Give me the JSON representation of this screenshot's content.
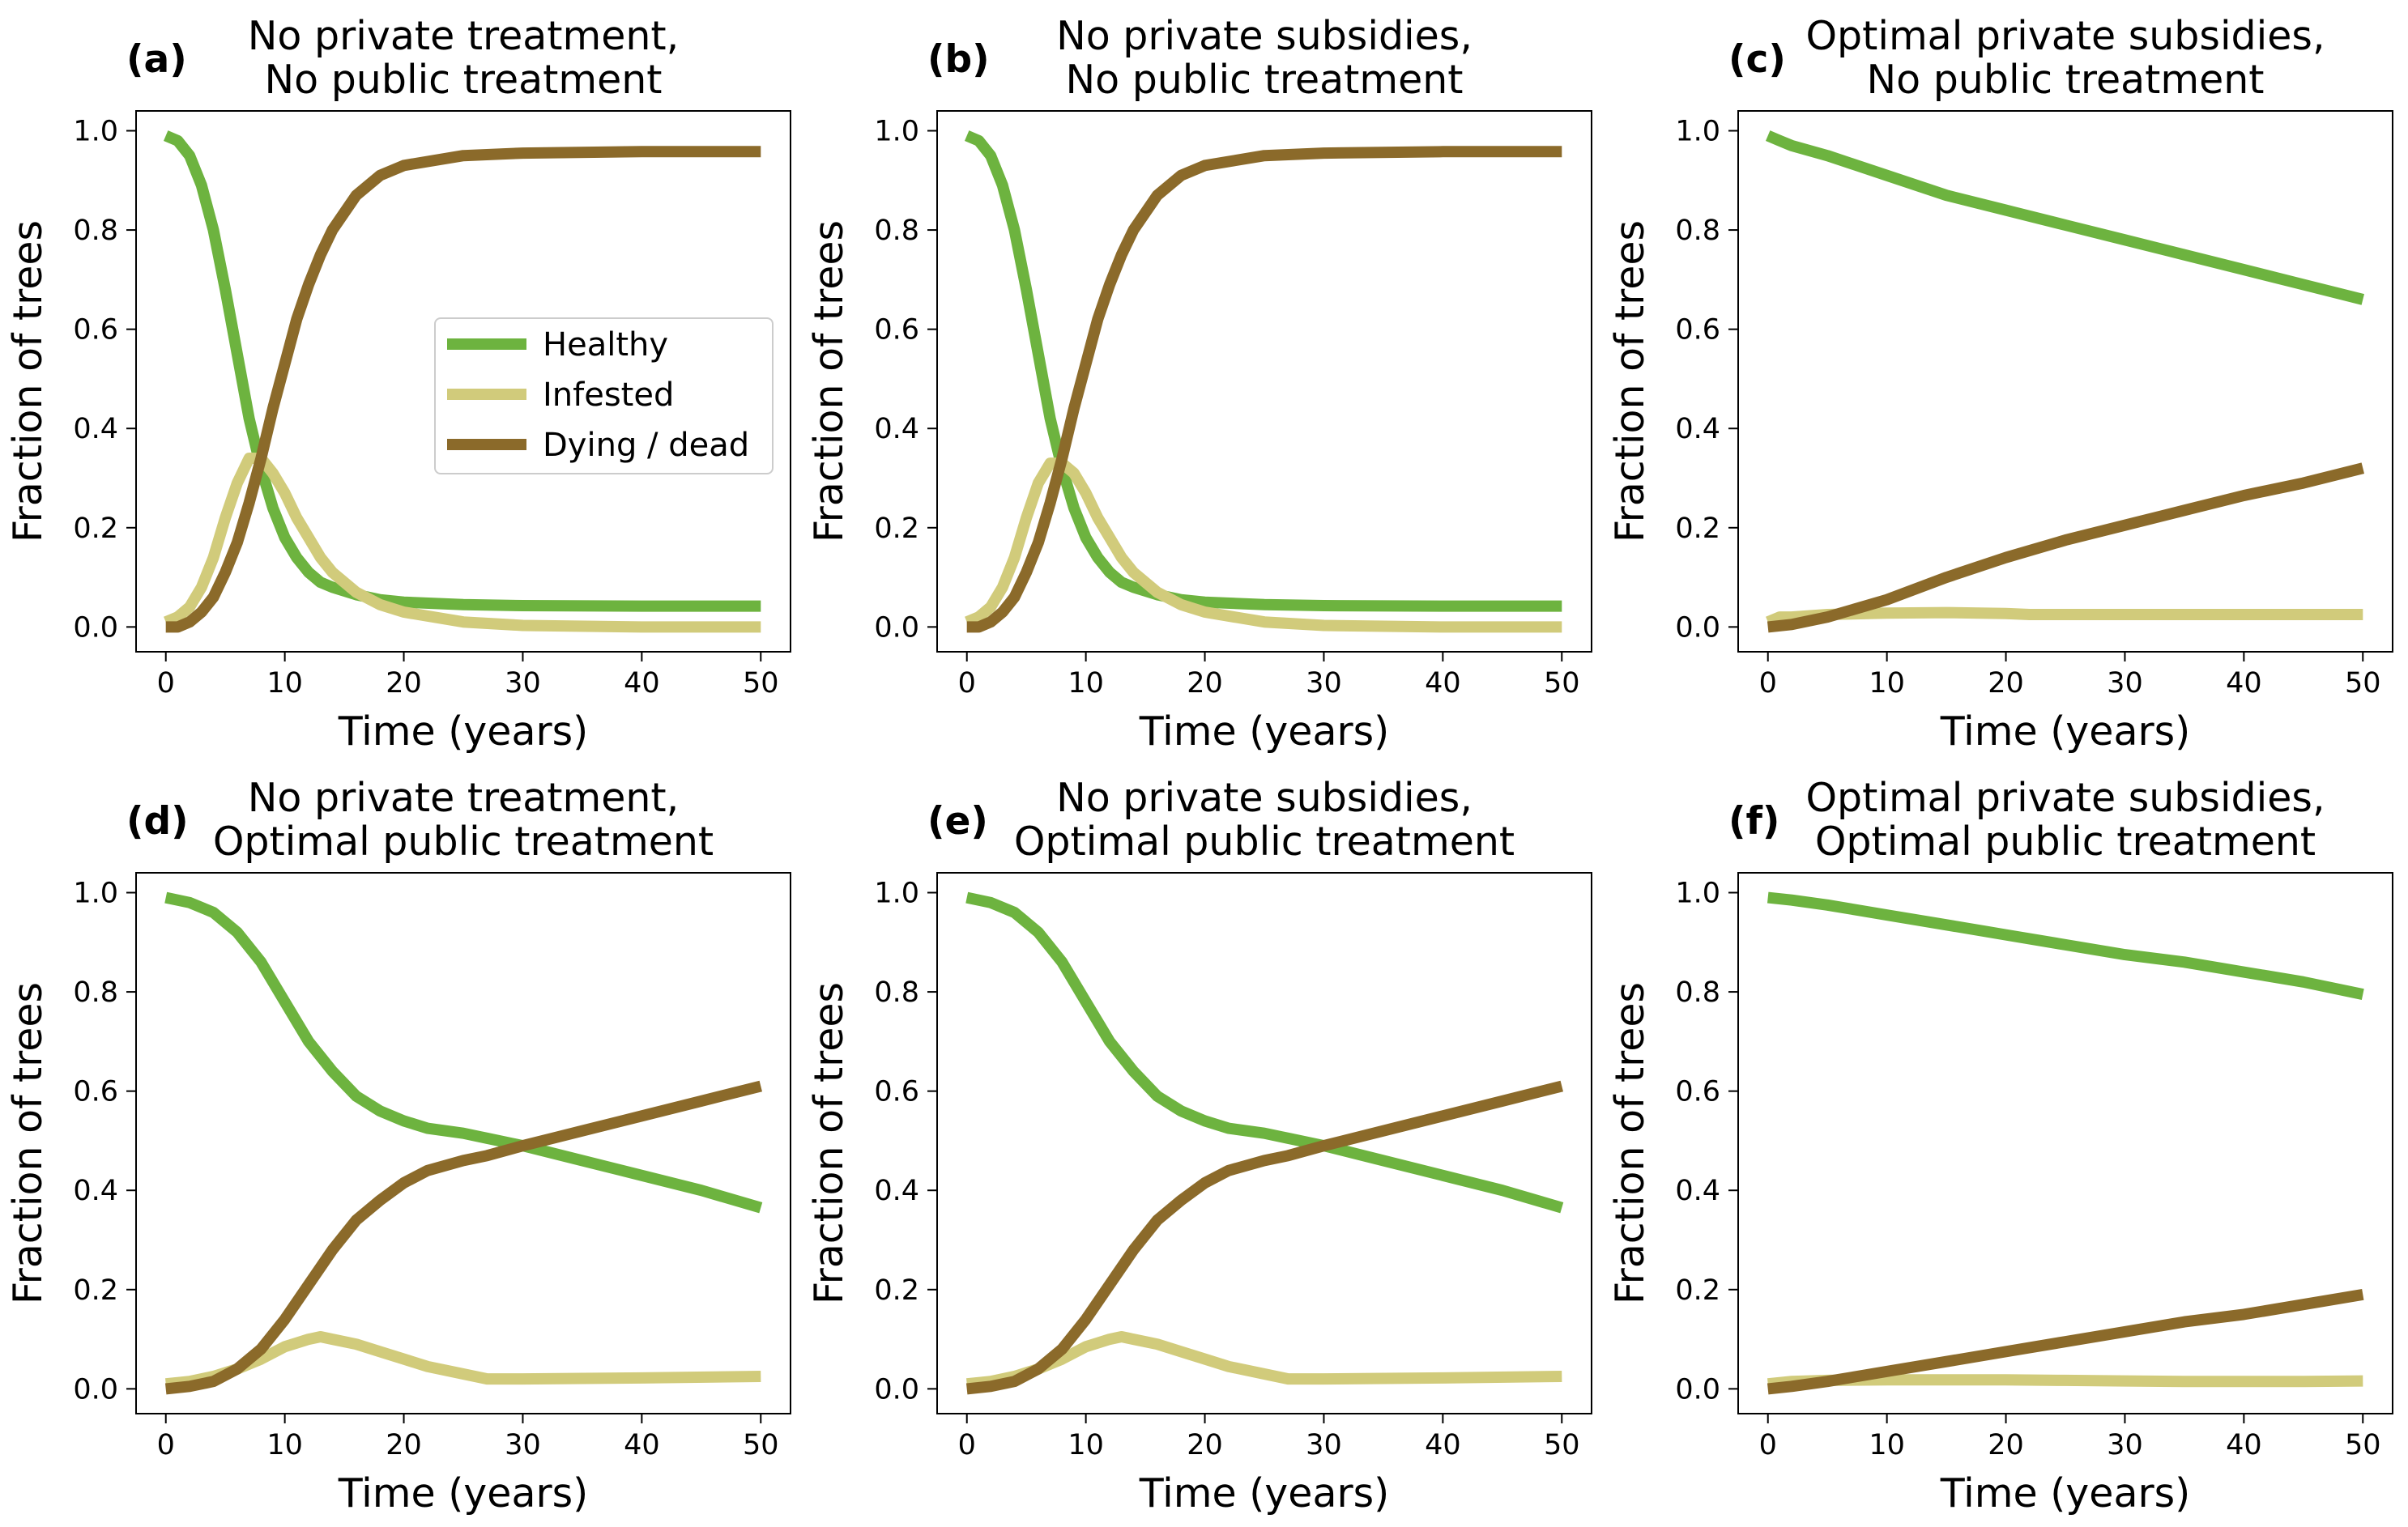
{
  "colors": {
    "healthy": "#6db33f",
    "infested": "#d1cb7b",
    "dying": "#8b6a2a"
  },
  "legend": {
    "items": [
      {
        "label": "Healthy",
        "color": "#6db33f"
      },
      {
        "label": "Infested",
        "color": "#d1cb7b"
      },
      {
        "label": "Dying / dead",
        "color": "#8b6a2a"
      }
    ]
  },
  "chart_data": [
    {
      "type": "line",
      "panel": "(a)",
      "title": [
        "No private treatment,",
        "No public treatment"
      ],
      "xlabel": "Time (years)",
      "ylabel": "Fraction of trees",
      "xlim": [
        -2.5,
        52.5
      ],
      "ylim": [
        -0.05,
        1.04
      ],
      "xticks": [
        0,
        10,
        20,
        30,
        40,
        50
      ],
      "yticks": [
        "0.0",
        "0.2",
        "0.4",
        "0.6",
        "0.8",
        "1.0"
      ],
      "series": [
        {
          "name": "Healthy",
          "x": [
            0,
            1,
            2,
            3,
            4,
            5,
            6,
            7,
            8,
            9,
            10,
            11,
            12,
            13,
            14,
            16,
            18,
            20,
            25,
            30,
            40,
            50
          ],
          "y": [
            0.99,
            0.98,
            0.95,
            0.89,
            0.8,
            0.68,
            0.55,
            0.42,
            0.32,
            0.24,
            0.18,
            0.14,
            0.11,
            0.09,
            0.08,
            0.065,
            0.055,
            0.05,
            0.045,
            0.043,
            0.042,
            0.042
          ]
        },
        {
          "name": "Infested",
          "x": [
            0,
            1,
            2,
            3,
            4,
            5,
            6,
            7,
            8,
            9,
            10,
            11,
            12,
            13,
            14,
            16,
            18,
            20,
            25,
            30,
            40,
            50
          ],
          "y": [
            0.01,
            0.02,
            0.04,
            0.08,
            0.14,
            0.22,
            0.29,
            0.34,
            0.34,
            0.31,
            0.27,
            0.22,
            0.18,
            0.14,
            0.11,
            0.07,
            0.045,
            0.03,
            0.01,
            0.003,
            0.0,
            0.0
          ]
        },
        {
          "name": "Dying / dead",
          "x": [
            0,
            1,
            2,
            3,
            4,
            5,
            6,
            7,
            8,
            9,
            10,
            11,
            12,
            13,
            14,
            16,
            18,
            20,
            25,
            30,
            40,
            50
          ],
          "y": [
            0.0,
            0.0,
            0.01,
            0.03,
            0.06,
            0.11,
            0.17,
            0.25,
            0.34,
            0.44,
            0.53,
            0.62,
            0.69,
            0.75,
            0.8,
            0.87,
            0.91,
            0.93,
            0.95,
            0.955,
            0.958,
            0.958
          ]
        }
      ]
    },
    {
      "type": "line",
      "panel": "(b)",
      "title": [
        "No private subsidies,",
        "No public treatment"
      ],
      "xlabel": "Time (years)",
      "ylabel": "Fraction of trees",
      "xlim": [
        -2.5,
        52.5
      ],
      "ylim": [
        -0.05,
        1.04
      ],
      "xticks": [
        0,
        10,
        20,
        30,
        40,
        50
      ],
      "yticks": [
        "0.0",
        "0.2",
        "0.4",
        "0.6",
        "0.8",
        "1.0"
      ],
      "series": [
        {
          "name": "Healthy",
          "x": [
            0,
            1,
            2,
            3,
            4,
            5,
            6,
            7,
            8,
            9,
            10,
            11,
            12,
            13,
            14,
            16,
            18,
            20,
            25,
            30,
            40,
            50
          ],
          "y": [
            0.99,
            0.98,
            0.95,
            0.89,
            0.8,
            0.68,
            0.55,
            0.42,
            0.32,
            0.24,
            0.18,
            0.14,
            0.11,
            0.09,
            0.08,
            0.065,
            0.055,
            0.05,
            0.045,
            0.043,
            0.042,
            0.042
          ]
        },
        {
          "name": "Infested",
          "x": [
            0,
            1,
            2,
            3,
            4,
            5,
            6,
            7,
            8,
            9,
            10,
            11,
            12,
            13,
            14,
            16,
            18,
            20,
            25,
            30,
            40,
            50
          ],
          "y": [
            0.01,
            0.02,
            0.04,
            0.08,
            0.14,
            0.22,
            0.29,
            0.33,
            0.33,
            0.31,
            0.27,
            0.22,
            0.18,
            0.14,
            0.11,
            0.07,
            0.045,
            0.03,
            0.01,
            0.003,
            0.0,
            0.0
          ]
        },
        {
          "name": "Dying / dead",
          "x": [
            0,
            1,
            2,
            3,
            4,
            5,
            6,
            7,
            8,
            9,
            10,
            11,
            12,
            13,
            14,
            16,
            18,
            20,
            25,
            30,
            40,
            50
          ],
          "y": [
            0.0,
            0.0,
            0.01,
            0.03,
            0.06,
            0.11,
            0.17,
            0.25,
            0.34,
            0.44,
            0.53,
            0.62,
            0.69,
            0.75,
            0.8,
            0.87,
            0.91,
            0.93,
            0.95,
            0.955,
            0.958,
            0.958
          ]
        }
      ]
    },
    {
      "type": "line",
      "panel": "(c)",
      "title": [
        "Optimal private subsidies,",
        "No public treatment"
      ],
      "xlabel": "Time (years)",
      "ylabel": "Fraction of trees",
      "xlim": [
        -2.5,
        52.5
      ],
      "ylim": [
        -0.05,
        1.04
      ],
      "xticks": [
        0,
        10,
        20,
        30,
        40,
        50
      ],
      "yticks": [
        "0.0",
        "0.2",
        "0.4",
        "0.6",
        "0.8",
        "1.0"
      ],
      "series": [
        {
          "name": "Healthy",
          "x": [
            0,
            1,
            2,
            5,
            10,
            15,
            20,
            25,
            30,
            35,
            40,
            45,
            50
          ],
          "y": [
            0.99,
            0.98,
            0.97,
            0.95,
            0.91,
            0.87,
            0.84,
            0.81,
            0.78,
            0.75,
            0.72,
            0.69,
            0.66
          ]
        },
        {
          "name": "Infested",
          "x": [
            0,
            1,
            2,
            5,
            10,
            15,
            20,
            22,
            25,
            30,
            40,
            50
          ],
          "y": [
            0.01,
            0.02,
            0.02,
            0.025,
            0.028,
            0.029,
            0.027,
            0.025,
            0.025,
            0.025,
            0.025,
            0.025
          ]
        },
        {
          "name": "Dying / dead",
          "x": [
            0,
            2,
            5,
            10,
            15,
            20,
            25,
            30,
            35,
            40,
            45,
            50
          ],
          "y": [
            0.0,
            0.005,
            0.02,
            0.055,
            0.1,
            0.14,
            0.175,
            0.205,
            0.235,
            0.265,
            0.29,
            0.32
          ]
        }
      ]
    },
    {
      "type": "line",
      "panel": "(d)",
      "title": [
        "No private treatment,",
        "Optimal public treatment"
      ],
      "xlabel": "Time (years)",
      "ylabel": "Fraction of trees",
      "xlim": [
        -2.5,
        52.5
      ],
      "ylim": [
        -0.05,
        1.04
      ],
      "xticks": [
        0,
        10,
        20,
        30,
        40,
        50
      ],
      "yticks": [
        "0.0",
        "0.2",
        "0.4",
        "0.6",
        "0.8",
        "1.0"
      ],
      "series": [
        {
          "name": "Healthy",
          "x": [
            0,
            2,
            4,
            6,
            8,
            10,
            12,
            14,
            16,
            18,
            20,
            22,
            25,
            27,
            30,
            35,
            40,
            45,
            50
          ],
          "y": [
            0.99,
            0.98,
            0.96,
            0.92,
            0.86,
            0.78,
            0.7,
            0.64,
            0.59,
            0.56,
            0.54,
            0.525,
            0.515,
            0.505,
            0.49,
            0.46,
            0.43,
            0.4,
            0.365
          ]
        },
        {
          "name": "Infested",
          "x": [
            0,
            2,
            4,
            6,
            8,
            10,
            12,
            13,
            14,
            16,
            18,
            20,
            22,
            25,
            27,
            30,
            40,
            50
          ],
          "y": [
            0.01,
            0.015,
            0.025,
            0.04,
            0.06,
            0.085,
            0.1,
            0.105,
            0.1,
            0.09,
            0.075,
            0.06,
            0.045,
            0.03,
            0.02,
            0.02,
            0.022,
            0.025
          ]
        },
        {
          "name": "Dying / dead",
          "x": [
            0,
            2,
            4,
            6,
            8,
            10,
            12,
            14,
            16,
            18,
            20,
            22,
            25,
            27,
            30,
            35,
            40,
            45,
            50
          ],
          "y": [
            0.0,
            0.005,
            0.015,
            0.04,
            0.08,
            0.14,
            0.21,
            0.28,
            0.34,
            0.38,
            0.415,
            0.44,
            0.46,
            0.47,
            0.49,
            0.52,
            0.55,
            0.58,
            0.61
          ]
        }
      ]
    },
    {
      "type": "line",
      "panel": "(e)",
      "title": [
        "No private subsidies,",
        "Optimal public treatment"
      ],
      "xlabel": "Time (years)",
      "ylabel": "Fraction of trees",
      "xlim": [
        -2.5,
        52.5
      ],
      "ylim": [
        -0.05,
        1.04
      ],
      "xticks": [
        0,
        10,
        20,
        30,
        40,
        50
      ],
      "yticks": [
        "0.0",
        "0.2",
        "0.4",
        "0.6",
        "0.8",
        "1.0"
      ],
      "series": [
        {
          "name": "Healthy",
          "x": [
            0,
            2,
            4,
            6,
            8,
            10,
            12,
            14,
            16,
            18,
            20,
            22,
            25,
            27,
            30,
            35,
            40,
            45,
            50
          ],
          "y": [
            0.99,
            0.98,
            0.96,
            0.92,
            0.86,
            0.78,
            0.7,
            0.64,
            0.59,
            0.56,
            0.54,
            0.525,
            0.515,
            0.505,
            0.49,
            0.46,
            0.43,
            0.4,
            0.365
          ]
        },
        {
          "name": "Infested",
          "x": [
            0,
            2,
            4,
            6,
            8,
            10,
            12,
            13,
            14,
            16,
            18,
            20,
            22,
            25,
            27,
            30,
            40,
            50
          ],
          "y": [
            0.01,
            0.015,
            0.025,
            0.04,
            0.06,
            0.085,
            0.1,
            0.105,
            0.1,
            0.09,
            0.075,
            0.06,
            0.045,
            0.03,
            0.02,
            0.02,
            0.022,
            0.025
          ]
        },
        {
          "name": "Dying / dead",
          "x": [
            0,
            2,
            4,
            6,
            8,
            10,
            12,
            14,
            16,
            18,
            20,
            22,
            25,
            27,
            30,
            35,
            40,
            45,
            50
          ],
          "y": [
            0.0,
            0.005,
            0.015,
            0.04,
            0.08,
            0.14,
            0.21,
            0.28,
            0.34,
            0.38,
            0.415,
            0.44,
            0.46,
            0.47,
            0.49,
            0.52,
            0.55,
            0.58,
            0.61
          ]
        }
      ]
    },
    {
      "type": "line",
      "panel": "(f)",
      "title": [
        "Optimal private subsidies,",
        "Optimal public treatment"
      ],
      "xlabel": "Time (years)",
      "ylabel": "Fraction of trees",
      "xlim": [
        -2.5,
        52.5
      ],
      "ylim": [
        -0.05,
        1.04
      ],
      "xticks": [
        0,
        10,
        20,
        30,
        40,
        50
      ],
      "yticks": [
        "0.0",
        "0.2",
        "0.4",
        "0.6",
        "0.8",
        "1.0"
      ],
      "series": [
        {
          "name": "Healthy",
          "x": [
            0,
            2,
            5,
            10,
            15,
            20,
            25,
            30,
            35,
            40,
            45,
            50
          ],
          "y": [
            0.99,
            0.985,
            0.975,
            0.955,
            0.935,
            0.915,
            0.895,
            0.875,
            0.86,
            0.84,
            0.82,
            0.795
          ]
        },
        {
          "name": "Infested",
          "x": [
            0,
            2,
            5,
            10,
            15,
            20,
            25,
            30,
            35,
            40,
            45,
            50
          ],
          "y": [
            0.01,
            0.015,
            0.017,
            0.018,
            0.018,
            0.018,
            0.017,
            0.016,
            0.015,
            0.015,
            0.015,
            0.016
          ]
        },
        {
          "name": "Dying / dead",
          "x": [
            0,
            2,
            5,
            10,
            15,
            20,
            25,
            30,
            35,
            40,
            45,
            50
          ],
          "y": [
            0.0,
            0.005,
            0.015,
            0.035,
            0.055,
            0.075,
            0.095,
            0.115,
            0.135,
            0.15,
            0.17,
            0.19
          ]
        }
      ]
    }
  ]
}
